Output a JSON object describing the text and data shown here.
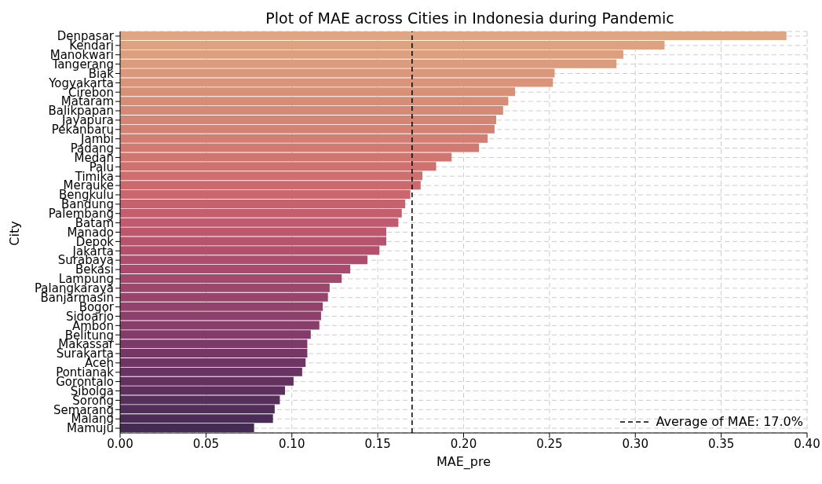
{
  "chart_data": {
    "type": "bar",
    "orientation": "horizontal",
    "title": "Plot of MAE across Cities in Indonesia during Pandemic",
    "xlabel": "MAE_pre",
    "ylabel": "City",
    "categories": [
      "Denpasar",
      "Kendari",
      "Manokwari",
      "Tangerang",
      "Biak",
      "Yogyakarta",
      "Cirebon",
      "Mataram",
      "Balikpapan",
      "Jayapura",
      "Pekanbaru",
      "Jambi",
      "Padang",
      "Medan",
      "Palu",
      "Timika",
      "Merauke",
      "Bengkulu",
      "Bandung",
      "Palembang",
      "Batam",
      "Manado",
      "Depok",
      "Jakarta",
      "Surabaya",
      "Bekasi",
      "Lampung",
      "Palangkaraya",
      "Banjarmasin",
      "Bogor",
      "Sidoarjo",
      "Ambon",
      "Belitung",
      "Makassar",
      "Surakarta",
      "Aceh",
      "Pontianak",
      "Gorontalo",
      "Sibolga",
      "Sorong",
      "Semarang",
      "Malang",
      "Mamuju"
    ],
    "values": [
      0.388,
      0.317,
      0.293,
      0.289,
      0.253,
      0.252,
      0.23,
      0.226,
      0.223,
      0.219,
      0.218,
      0.214,
      0.209,
      0.193,
      0.184,
      0.176,
      0.175,
      0.169,
      0.166,
      0.164,
      0.162,
      0.155,
      0.155,
      0.151,
      0.144,
      0.134,
      0.129,
      0.122,
      0.121,
      0.118,
      0.117,
      0.116,
      0.111,
      0.109,
      0.109,
      0.108,
      0.106,
      0.101,
      0.096,
      0.093,
      0.09,
      0.089,
      0.078
    ],
    "colors": [
      "#dea683",
      "#dda281",
      "#dc9f7f",
      "#db9b7d",
      "#da977b",
      "#d99479",
      "#d89077",
      "#d78c76",
      "#d68975",
      "#d58574",
      "#d48273",
      "#d37e72",
      "#d27a71",
      "#d07670",
      "#cf726f",
      "#cd6e6f",
      "#cb6a6e",
      "#c9666e",
      "#c6626e",
      "#c35e6e",
      "#c05a6e",
      "#bc576e",
      "#b8536e",
      "#b4506e",
      "#af4d6e",
      "#aa4a6e",
      "#a5486e",
      "#9f466d",
      "#99446d",
      "#93426c",
      "#8d406b",
      "#873e6a",
      "#813c69",
      "#7b3a67",
      "#753865",
      "#6f3663",
      "#693461",
      "#63325f",
      "#5d305d",
      "#572f5b",
      "#512d59",
      "#4b2c57",
      "#452a55"
    ],
    "xlim": [
      0,
      0.4
    ],
    "xticks": [
      {
        "value": 0,
        "label": "0.00"
      },
      {
        "value": 0.05,
        "label": "0.05"
      },
      {
        "value": 0.1,
        "label": "0.10"
      },
      {
        "value": 0.15,
        "label": "0.15"
      },
      {
        "value": 0.2,
        "label": "0.20"
      },
      {
        "value": 0.25,
        "label": "0.25"
      },
      {
        "value": 0.3,
        "label": "0.30"
      },
      {
        "value": 0.35,
        "label": "0.35"
      },
      {
        "value": 0.4,
        "label": "0.40"
      }
    ],
    "ref_lines": [
      {
        "axis": "x",
        "value": 0.17,
        "label": "Average of MAE: 17.0%",
        "color": "#000000",
        "line_style": "dashed"
      }
    ],
    "grid": true,
    "legend": "bottom right"
  }
}
